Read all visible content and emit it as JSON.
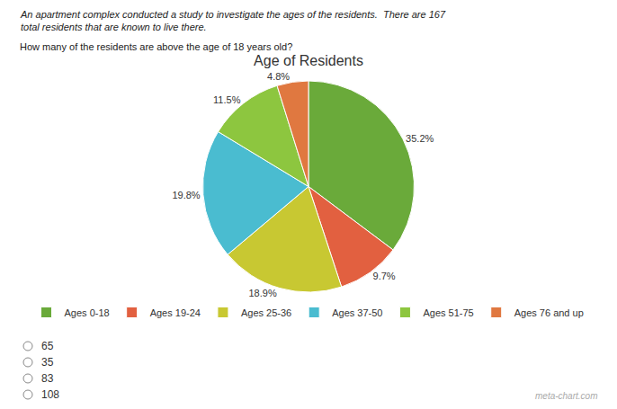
{
  "chart_data": {
    "type": "pie",
    "title": "Age of Residents",
    "subtitle": "An apartment complex conducted a study to investigate the ages of the residents.  There are 167 total residents that are known to live there.",
    "annotations": [
      "How many of the residents are above the age of 18 years old?",
      "65",
      "35",
      "83",
      "108",
      "meta-chart.com"
    ],
    "categories": [
      "Ages 0-18",
      "Ages 19-24",
      "Ages 25-36",
      "Ages 37-50",
      "Ages 51-75",
      "Ages 76 and up"
    ],
    "values": [
      35.2,
      9.7,
      18.9,
      19.8,
      11.5,
      4.8
    ],
    "value_labels": [
      "35.2%",
      "9.7%",
      "18.9%",
      "19.8%",
      "11.5%",
      "4.8%"
    ],
    "colors": [
      "#6aaa3a",
      "#e26040",
      "#c8c832",
      "#4abcd0",
      "#8dc63f",
      "#e07840"
    ],
    "data_labels": true,
    "legend": "bottom"
  }
}
